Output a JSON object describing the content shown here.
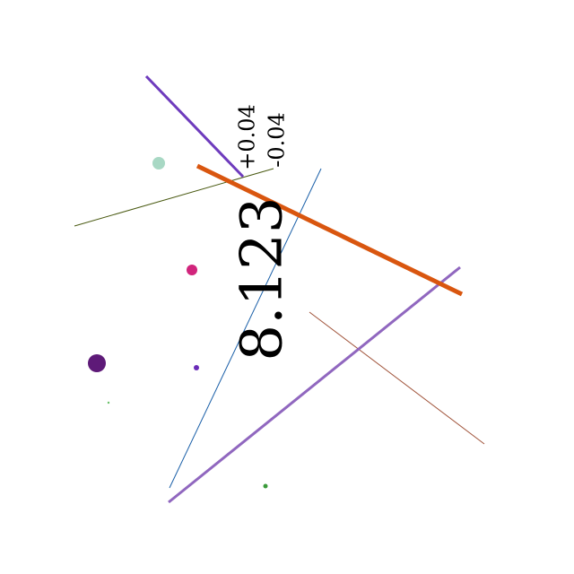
{
  "measurement": {
    "value": "8.123",
    "upper_tolerance": "+0.04",
    "lower_tolerance": "-0.04"
  },
  "colors": {
    "background": "#ffffff",
    "text": "#000000",
    "orange_line": "#d9560f",
    "violet_line": "#9067bf",
    "purple_line": "#6e3bbd",
    "blue_line": "#1a5fa8",
    "olive_line": "#4a5a12",
    "brown_line": "#a0533a",
    "dot_mint": "#a8d8c4",
    "dot_magenta": "#d1247c",
    "dot_deep_purple": "#5e1a78",
    "dot_violet": "#6a2bb8",
    "dot_green_large": "#3a9a3a",
    "dot_green_small": "#6ac26a"
  }
}
